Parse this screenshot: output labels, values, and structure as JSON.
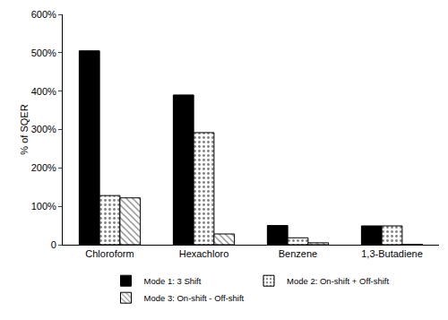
{
  "chart_data": {
    "type": "bar",
    "y_label": "% of SQER",
    "categories": [
      "Chloroform",
      "Hexachloro",
      "Benzene",
      "1,3-Butadiene"
    ],
    "series": [
      {
        "name": "Mode 1: 3 Shift",
        "color": "#000000",
        "marker": "solid",
        "values": [
          505,
          390,
          50,
          49
        ]
      },
      {
        "name": "Mode 2: On-shift + Off-shift",
        "color": "#ffffff",
        "marker": "dots",
        "values": [
          128,
          292,
          18,
          49
        ]
      },
      {
        "name": "Mode 3: On-shift - Off-shift",
        "color": "#ffffff",
        "marker": "hatch",
        "values": [
          122,
          28,
          5,
          1
        ]
      }
    ],
    "ylim": [
      0,
      600
    ],
    "yticks": [
      0,
      {
        "value": 100,
        "label": "100%"
      },
      {
        "value": 200,
        "label": "200%"
      },
      {
        "value": 300,
        "label": "300%"
      },
      {
        "value": 400,
        "label": "400%"
      },
      {
        "value": 500,
        "label": "500%"
      },
      {
        "value": 600,
        "label": "600%"
      }
    ],
    "grid": false,
    "legend": "bottom"
  }
}
